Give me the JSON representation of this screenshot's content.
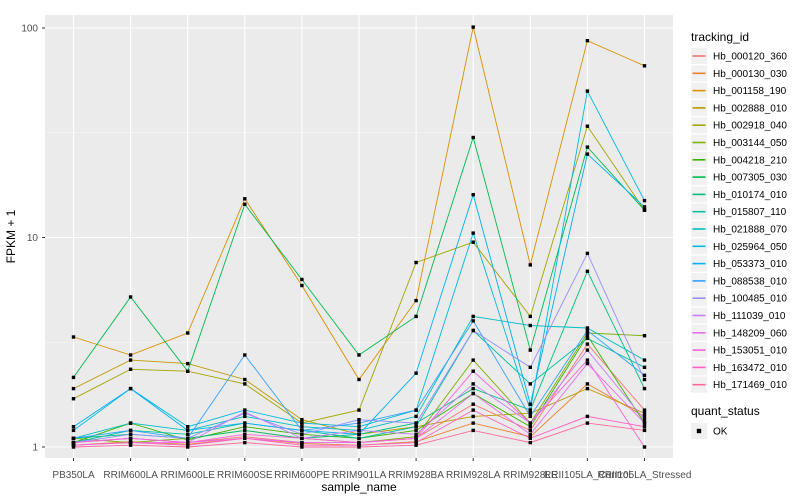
{
  "figure": {
    "x_axis_title": "sample_name",
    "y_axis_title": "FPKM + 1",
    "legend_title": "tracking_id",
    "quant_legend_title": "quant_status",
    "quant_legend_item": "OK"
  },
  "chart_data": {
    "type": "line",
    "title": "",
    "xlabel": "sample_name",
    "ylabel": "FPKM + 1",
    "y_scale": "log10",
    "y_ticks": [
      1,
      10,
      100
    ],
    "y_minor_ticks": [
      3.1623,
      31.623
    ],
    "ylim": [
      0.89,
      115
    ],
    "grid": true,
    "panel_color": "#EBEBEB",
    "gridline_color": "#FFFFFF",
    "tick_label_color": "#4D4D4D",
    "point_shape": "filled-black-square",
    "legend_position": "right",
    "legend_title": "tracking_id",
    "quant_status_legend": {
      "title": "quant_status",
      "items": [
        "OK"
      ]
    },
    "categories": [
      "PB350LA",
      "RRIM600LA",
      "RRIM600LE",
      "RRIM600SE",
      "RRIM600PE",
      "RRIM901LA",
      "RRIM928BA",
      "RRIM928LA",
      "RRIM928LE",
      "RRII105LA_Control",
      "RRII105LA_Stressed"
    ],
    "series": [
      {
        "name": "Hb_000120_360",
        "color": "#F8766D",
        "values": [
          1.05,
          1.1,
          1.05,
          1.12,
          1.05,
          1.05,
          1.1,
          1.6,
          1.2,
          3.1,
          1.5
        ]
      },
      {
        "name": "Hb_000130_030",
        "color": "#EA8331",
        "values": [
          1.02,
          1.06,
          1.03,
          1.1,
          1.04,
          1.02,
          1.06,
          1.3,
          1.12,
          2.0,
          1.4
        ]
      },
      {
        "name": "Hb_001158_190",
        "color": "#D89000",
        "values": [
          3.35,
          2.75,
          3.5,
          15.3,
          5.9,
          2.1,
          5.0,
          101,
          7.4,
          87,
          66
        ]
      },
      {
        "name": "Hb_002888_010",
        "color": "#C09B00",
        "values": [
          1.9,
          2.6,
          2.5,
          2.1,
          1.35,
          1.15,
          1.25,
          1.4,
          1.45,
          1.9,
          1.45
        ]
      },
      {
        "name": "Hb_002918_040",
        "color": "#A3A500",
        "values": [
          1.7,
          2.35,
          2.3,
          2.0,
          1.3,
          1.5,
          7.6,
          9.5,
          4.2,
          34,
          13.5
        ]
      },
      {
        "name": "Hb_003144_050",
        "color": "#7CAE00",
        "values": [
          1.1,
          1.05,
          1.1,
          1.2,
          1.1,
          1.05,
          1.12,
          2.6,
          1.3,
          3.5,
          3.4
        ]
      },
      {
        "name": "Hb_004218_210",
        "color": "#39B600",
        "values": [
          1.05,
          1.3,
          1.08,
          1.25,
          1.15,
          1.1,
          1.2,
          1.8,
          1.25,
          3.4,
          1.3
        ]
      },
      {
        "name": "Hb_007305_030",
        "color": "#00BB4E",
        "values": [
          2.15,
          5.2,
          2.3,
          14.4,
          6.3,
          2.75,
          4.2,
          30,
          2.9,
          27,
          13.5
        ]
      },
      {
        "name": "Hb_010174_010",
        "color": "#00BF7D",
        "values": [
          1.1,
          1.15,
          1.1,
          1.2,
          1.1,
          1.15,
          1.3,
          1.9,
          1.5,
          6.9,
          1.9
        ]
      },
      {
        "name": "Hb_015807_110",
        "color": "#00C1A3",
        "values": [
          1.05,
          1.2,
          1.15,
          1.3,
          1.2,
          1.1,
          1.25,
          3.6,
          2.0,
          3.3,
          2.4
        ]
      },
      {
        "name": "Hb_021888_070",
        "color": "#00BFC4",
        "values": [
          1.1,
          1.3,
          1.2,
          1.4,
          1.25,
          1.2,
          1.4,
          4.2,
          3.8,
          3.7,
          2.6
        ]
      },
      {
        "name": "Hb_025964_050",
        "color": "#00BADE",
        "values": [
          1.2,
          1.9,
          1.25,
          1.5,
          1.3,
          1.25,
          1.5,
          10.5,
          1.5,
          50,
          15
        ]
      },
      {
        "name": "Hb_053373_010",
        "color": "#00B0F6",
        "values": [
          1.25,
          1.9,
          1.2,
          1.3,
          1.2,
          1.15,
          2.25,
          16,
          1.6,
          25,
          14
        ]
      },
      {
        "name": "Hb_088538_010",
        "color": "#35A2FF",
        "values": [
          1.1,
          1.2,
          1.1,
          2.75,
          1.2,
          1.3,
          1.5,
          4.0,
          1.4,
          3.6,
          2.2
        ]
      },
      {
        "name": "Hb_100485_010",
        "color": "#9590FF",
        "values": [
          1.05,
          1.15,
          1.1,
          1.45,
          1.15,
          1.35,
          1.3,
          3.6,
          2.4,
          8.4,
          2.1
        ]
      },
      {
        "name": "Hb_111039_010",
        "color": "#C77CFF",
        "values": [
          1.05,
          1.1,
          1.05,
          1.47,
          1.1,
          1.2,
          1.15,
          2.0,
          1.3,
          2.9,
          1.35
        ]
      },
      {
        "name": "Hb_148209_060",
        "color": "#E76BF3",
        "values": [
          1.02,
          1.05,
          1.05,
          1.1,
          1.05,
          1.05,
          1.1,
          1.8,
          1.15,
          2.5,
          1.3
        ]
      },
      {
        "name": "Hb_153051_010",
        "color": "#FA62DB",
        "values": [
          1.05,
          1.1,
          1.05,
          1.15,
          1.1,
          1.05,
          1.1,
          2.3,
          1.3,
          2.6,
          1.0
        ]
      },
      {
        "name": "Hb_163472_010",
        "color": "#FF61C3",
        "values": [
          1.02,
          1.05,
          1.02,
          1.1,
          1.02,
          1.02,
          1.05,
          1.5,
          1.1,
          1.4,
          1.25
        ]
      },
      {
        "name": "Hb_171469_010",
        "color": "#FF689F",
        "values": [
          1.0,
          1.02,
          1.0,
          1.05,
          1.0,
          1.0,
          1.02,
          1.2,
          1.05,
          1.3,
          1.2
        ]
      }
    ]
  }
}
